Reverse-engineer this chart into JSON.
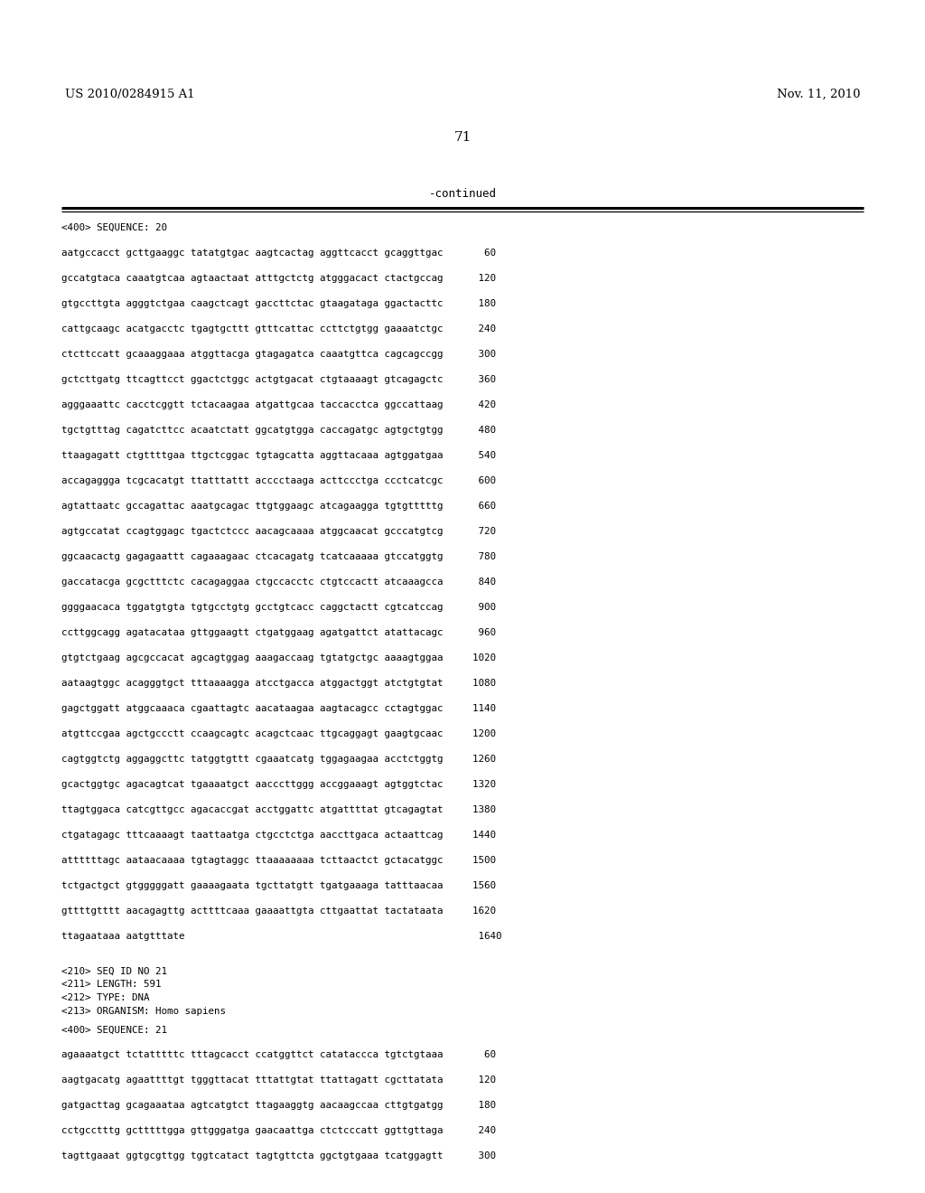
{
  "header_left": "US 2010/0284915 A1",
  "header_right": "Nov. 11, 2010",
  "page_number": "71",
  "continued_label": "-continued",
  "background_color": "#ffffff",
  "text_color": "#000000",
  "seq20_header": "<400> SEQUENCE: 20",
  "seq_lines_20": [
    "aatgccacct gcttgaaggc tatatgtgac aagtcactag aggttcacct gcaggttgac       60",
    "gccatgtaca caaatgtcaa agtaactaat atttgctctg atgggacact ctactgccag      120",
    "gtgccttgta agggtctgaa caagctcagt gaccttctac gtaagataga ggactacttc      180",
    "cattgcaagc acatgacctc tgagtgcttt gtttcattac ccttctgtgg gaaaatctgc      240",
    "ctcttccatt gcaaaggaaa atggttacga gtagagatca caaatgttca cagcagccgg      300",
    "gctcttgatg ttcagttcct ggactctggc actgtgacat ctgtaaaagt gtcagagctc      360",
    "agggaaattc cacctcggtt tctacaagaa atgattgcaa taccacctca ggccattaag      420",
    "tgctgtttag cagatcttcc acaatctatt ggcatgtgga caccagatgc agtgctgtgg      480",
    "ttaagagatt ctgttttgaa ttgctcggac tgtagcatta aggttacaaa agtggatgaa      540",
    "accagaggga tcgcacatgt ttatttattt acccctaaga acttccctga ccctcatcgc      600",
    "agtattaatc gccagattac aaatgcagac ttgtggaagc atcagaagga tgtgtttttg      660",
    "agtgccatat ccagtggagc tgactctccc aacagcaaaa atggcaacat gcccatgtcg      720",
    "ggcaacactg gagagaattt cagaaagaac ctcacagatg tcatcaaaaa gtccatggtg      780",
    "gaccatacga gcgctttctc cacagaggaa ctgccacctc ctgtccactt atcaaagcca      840",
    "ggggaacaca tggatgtgta tgtgcctgtg gcctgtcacc caggctactt cgtcatccag      900",
    "ccttggcagg agatacataa gttggaagtt ctgatggaag agatgattct atattacagc      960",
    "gtgtctgaag agcgccacat agcagtggag aaagaccaag tgtatgctgc aaaagtggaa     1020",
    "aataagtggc acagggtgct tttaaaagga atcctgacca atggactggt atctgtgtat     1080",
    "gagctggatt atggcaaaca cgaattagtc aacataagaa aagtacagcc cctagtggac     1140",
    "atgttccgaa agctgccctt ccaagcagtc acagctcaac ttgcaggagt gaagtgcaac     1200",
    "cagtggtctg aggaggcttc tatggtgttt cgaaatcatg tggagaagaa acctctggtg     1260",
    "gcactggtgc agacagtcat tgaaaatgct aacccttggg accggaaagt agtggtctac     1320",
    "ttagtggaca catcgttgcc agacaccgat acctggattc atgattttat gtcagagtat     1380",
    "ctgatagagc tttcaaaagt taattaatga ctgcctctga aaccttgaca actaattcag     1440",
    "attttttagc aataacaaaa tgtagtaggc ttaaaaaaaa tcttaactct gctacatggc     1500",
    "tctgactgct gtgggggatt gaaaagaata tgcttatgtt tgatgaaaga tatttaacaa     1560",
    "gttttgtttt aacagagttg acttttcaaa gaaaattgta cttgaattat tactataata     1620",
    "ttagaataaa aatgtttate                                                  1640"
  ],
  "meta_lines_21": [
    "<210> SEQ ID NO 21",
    "<211> LENGTH: 591",
    "<212> TYPE: DNA",
    "<213> ORGANISM: Homo sapiens"
  ],
  "seq21_header": "<400> SEQUENCE: 21",
  "seq_lines_21": [
    "agaaaatgct tctatttttc tttagcacct ccatggttct catataccca tgtctgtaaa       60",
    "aagtgacatg agaattttgt tgggttacat tttattgtat ttattagatt cgcttatata      120",
    "gatgacttag gcagaaataa agtcatgtct ttagaaggtg aacaagccaa cttgtgatgg      180",
    "cctgcctttg gctttttgga gttgggatga gaacaattga ctctcccatt ggttgttaga      240",
    "tagttgaaat ggtgcgttgg tggtcatact tagtgttcta ggctgtgaaa tcatggagtt      300"
  ]
}
